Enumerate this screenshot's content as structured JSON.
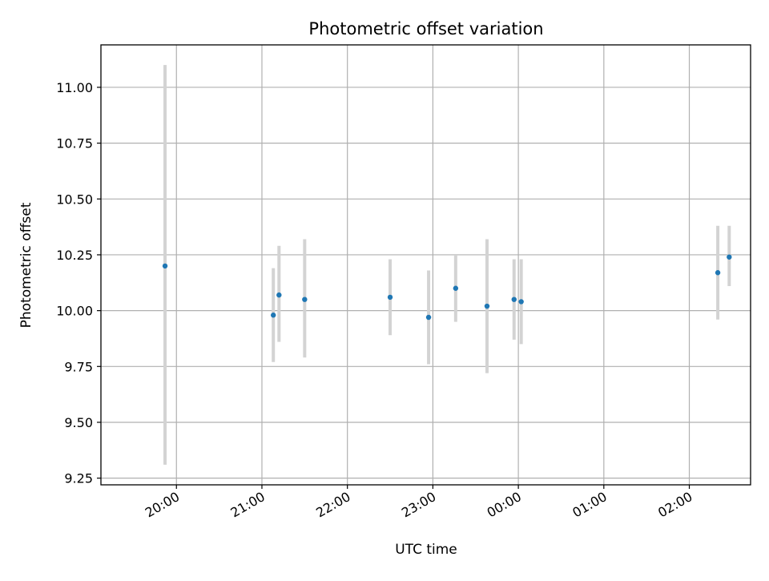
{
  "chart_data": {
    "type": "scatter",
    "title": "Photometric offset variation",
    "xlabel": "UTC time",
    "ylabel": "Photometric offset",
    "x_ticks": [
      "20:00",
      "21:00",
      "22:00",
      "23:00",
      "00:00",
      "01:00",
      "02:00"
    ],
    "y_ticks": [
      "9.25",
      "9.50",
      "9.75",
      "10.00",
      "10.25",
      "10.50",
      "10.75",
      "11.00"
    ],
    "ylim": [
      9.22,
      11.19
    ],
    "xlim": [
      "19:07",
      "02:43"
    ],
    "grid": true,
    "x_labels_rotated": true,
    "marker_color": "#1f77b4",
    "errorbar_color": "#d3d3d3",
    "points": [
      {
        "time": "19:52",
        "y": 10.2,
        "y_low": 9.31,
        "y_high": 11.1
      },
      {
        "time": "21:08",
        "y": 9.98,
        "y_low": 9.77,
        "y_high": 10.19
      },
      {
        "time": "21:12",
        "y": 10.07,
        "y_low": 9.86,
        "y_high": 10.29
      },
      {
        "time": "21:30",
        "y": 10.05,
        "y_low": 9.79,
        "y_high": 10.32
      },
      {
        "time": "22:30",
        "y": 10.06,
        "y_low": 9.89,
        "y_high": 10.23
      },
      {
        "time": "22:57",
        "y": 9.97,
        "y_low": 9.76,
        "y_high": 10.18
      },
      {
        "time": "23:16",
        "y": 10.1,
        "y_low": 9.95,
        "y_high": 10.25
      },
      {
        "time": "23:38",
        "y": 10.02,
        "y_low": 9.72,
        "y_high": 10.32
      },
      {
        "time": "23:57",
        "y": 10.05,
        "y_low": 9.87,
        "y_high": 10.23
      },
      {
        "time": "00:02",
        "y": 10.04,
        "y_low": 9.85,
        "y_high": 10.23
      },
      {
        "time": "02:20",
        "y": 10.17,
        "y_low": 9.96,
        "y_high": 10.38
      },
      {
        "time": "02:28",
        "y": 10.24,
        "y_low": 10.11,
        "y_high": 10.38
      }
    ]
  }
}
